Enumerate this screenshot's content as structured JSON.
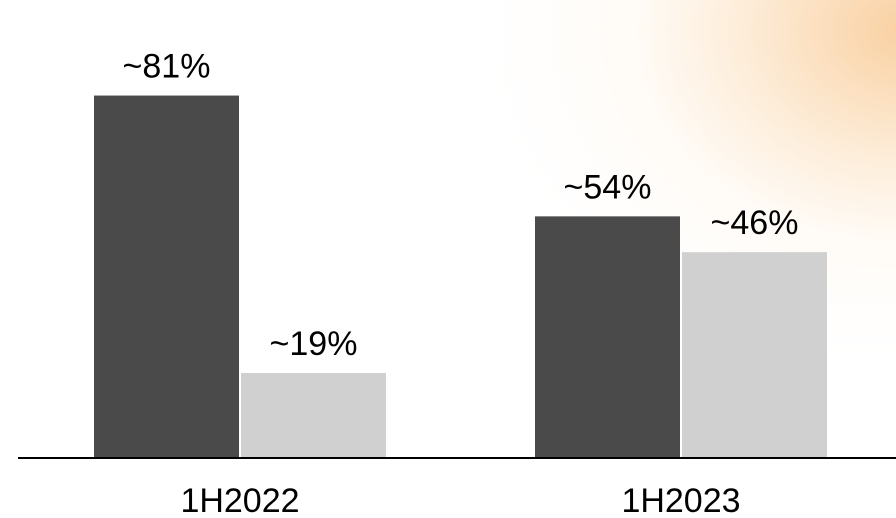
{
  "chart_data": {
    "type": "bar",
    "categories": [
      "1H2022",
      "1H2023"
    ],
    "series": [
      {
        "values": [
          81,
          54
        ],
        "labels": [
          "~81%",
          "~54%"
        ],
        "color": "#4a4a4a"
      },
      {
        "values": [
          19,
          46
        ],
        "labels": [
          "~19%",
          "~46%"
        ],
        "color": "#d0d0d0"
      }
    ],
    "ylim": [
      0,
      100
    ],
    "grid": false,
    "legend": "none",
    "axis_color": "#000000"
  }
}
